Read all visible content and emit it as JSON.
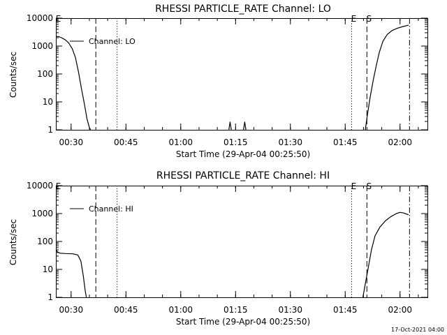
{
  "chart_data": [
    {
      "type": "line",
      "title": "RHESSI PARTICLE_RATE Channel: LO",
      "xlabel": "Start Time (29-Apr-04 00:25:50)",
      "ylabel": "Counts/sec",
      "yscale": "log",
      "ylim": [
        1,
        10000
      ],
      "yticks": [
        {
          "value": 1,
          "label": "1"
        },
        {
          "value": 10,
          "label": "10"
        },
        {
          "value": 100,
          "label": "100"
        },
        {
          "value": 1000,
          "label": "1000"
        },
        {
          "value": 10000,
          "label": "10000"
        }
      ],
      "xlim": [
        "00:25:50",
        "02:07:30"
      ],
      "xticks": [
        "00:30",
        "00:45",
        "01:00",
        "01:15",
        "01:30",
        "01:45",
        "02:00"
      ],
      "legend": {
        "label": "Channel: LO",
        "position": "top-left"
      },
      "markers": [
        {
          "time": "00:25:50",
          "style": "dashed",
          "label": "E"
        },
        {
          "time": "00:36:40",
          "style": "dashed",
          "label": ""
        },
        {
          "time": "00:42:30",
          "style": "dotted",
          "label": ""
        },
        {
          "time": "01:46:40",
          "style": "dotted",
          "label": "E"
        },
        {
          "time": "01:50:50",
          "style": "dashed",
          "label": "S"
        },
        {
          "time": "02:02:30",
          "style": "dash-dot",
          "label": ""
        }
      ],
      "series": [
        {
          "segments": [
            [
              {
                "t": "00:25:50",
                "y": 2200
              },
              {
                "t": "00:26:30",
                "y": 2200
              },
              {
                "t": "00:27:20",
                "y": 2000
              },
              {
                "t": "00:28:20",
                "y": 1700
              },
              {
                "t": "00:29:20",
                "y": 1300
              },
              {
                "t": "00:30:20",
                "y": 800
              },
              {
                "t": "00:31:10",
                "y": 400
              },
              {
                "t": "00:32:00",
                "y": 120
              },
              {
                "t": "00:32:50",
                "y": 30
              },
              {
                "t": "00:33:40",
                "y": 8
              },
              {
                "t": "00:34:20",
                "y": 2.5
              },
              {
                "t": "00:35:00",
                "y": 1.2
              },
              {
                "t": "00:35:20",
                "y": 1
              }
            ],
            [
              {
                "t": "01:13:10",
                "y": 1
              },
              {
                "t": "01:13:30",
                "y": 1.9
              },
              {
                "t": "01:13:50",
                "y": 1
              }
            ],
            [
              {
                "t": "01:17:10",
                "y": 1
              },
              {
                "t": "01:17:30",
                "y": 1.9
              },
              {
                "t": "01:17:50",
                "y": 1
              }
            ],
            [
              {
                "t": "01:50:30",
                "y": 1
              },
              {
                "t": "01:51:00",
                "y": 3
              },
              {
                "t": "01:51:50",
                "y": 15
              },
              {
                "t": "01:52:40",
                "y": 60
              },
              {
                "t": "01:53:30",
                "y": 200
              },
              {
                "t": "01:54:20",
                "y": 600
              },
              {
                "t": "01:55:20",
                "y": 1500
              },
              {
                "t": "01:56:30",
                "y": 2600
              },
              {
                "t": "01:57:50",
                "y": 3600
              },
              {
                "t": "01:59:20",
                "y": 4400
              },
              {
                "t": "02:00:50",
                "y": 5000
              },
              {
                "t": "02:02:20",
                "y": 5600
              }
            ]
          ]
        }
      ]
    },
    {
      "type": "line",
      "title": "RHESSI PARTICLE_RATE Channel: HI",
      "xlabel": "Start Time (29-Apr-04 00:25:50)",
      "ylabel": "Counts/sec",
      "yscale": "log",
      "ylim": [
        1,
        10000
      ],
      "yticks": [
        {
          "value": 1,
          "label": "1"
        },
        {
          "value": 10,
          "label": "10"
        },
        {
          "value": 100,
          "label": "100"
        },
        {
          "value": 1000,
          "label": "1000"
        },
        {
          "value": 10000,
          "label": "10000"
        }
      ],
      "xlim": [
        "00:25:50",
        "02:07:30"
      ],
      "xticks": [
        "00:30",
        "00:45",
        "01:00",
        "01:15",
        "01:30",
        "01:45",
        "02:00"
      ],
      "legend": {
        "label": "Channel: HI",
        "position": "top-left"
      },
      "markers": [
        {
          "time": "00:25:50",
          "style": "dashed",
          "label": "E"
        },
        {
          "time": "00:36:40",
          "style": "dashed",
          "label": ""
        },
        {
          "time": "00:42:30",
          "style": "dotted",
          "label": ""
        },
        {
          "time": "01:46:40",
          "style": "dotted",
          "label": "E"
        },
        {
          "time": "01:50:50",
          "style": "dashed",
          "label": "S"
        },
        {
          "time": "02:02:30",
          "style": "dash-dot",
          "label": ""
        }
      ],
      "series": [
        {
          "segments": [
            [
              {
                "t": "00:25:50",
                "y": 50
              },
              {
                "t": "00:26:20",
                "y": 42
              },
              {
                "t": "00:27:00",
                "y": 38
              },
              {
                "t": "00:28:30",
                "y": 37
              },
              {
                "t": "00:30:30",
                "y": 36
              },
              {
                "t": "00:31:50",
                "y": 33
              },
              {
                "t": "00:32:40",
                "y": 20
              },
              {
                "t": "00:33:20",
                "y": 6
              },
              {
                "t": "00:33:50",
                "y": 1.8
              },
              {
                "t": "00:34:10",
                "y": 1
              }
            ],
            [
              {
                "t": "01:49:50",
                "y": 1
              },
              {
                "t": "01:50:30",
                "y": 3
              },
              {
                "t": "01:51:20",
                "y": 12
              },
              {
                "t": "01:52:10",
                "y": 50
              },
              {
                "t": "01:53:10",
                "y": 160
              },
              {
                "t": "01:54:30",
                "y": 330
              },
              {
                "t": "01:56:00",
                "y": 550
              },
              {
                "t": "01:57:30",
                "y": 780
              },
              {
                "t": "01:59:00",
                "y": 1000
              },
              {
                "t": "02:00:00",
                "y": 1100
              },
              {
                "t": "02:01:00",
                "y": 1050
              },
              {
                "t": "02:02:20",
                "y": 900
              }
            ]
          ]
        }
      ]
    }
  ],
  "footer": {
    "timestamp": "17-Oct-2021 04:00"
  }
}
